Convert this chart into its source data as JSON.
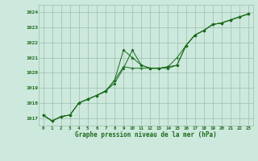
{
  "x": [
    0,
    1,
    2,
    3,
    4,
    5,
    6,
    7,
    8,
    9,
    10,
    11,
    12,
    13,
    14,
    15,
    16,
    17,
    18,
    19,
    20,
    21,
    22,
    23
  ],
  "series1": [
    1017.2,
    1016.8,
    1017.1,
    1017.2,
    1018.0,
    1018.25,
    1018.5,
    1018.8,
    1019.5,
    1021.5,
    1021.0,
    1020.5,
    1020.3,
    1020.3,
    1020.4,
    1020.5,
    1021.8,
    1022.5,
    1022.8,
    1023.2,
    1023.3,
    1023.5,
    1023.7,
    1023.9
  ],
  "series2": [
    1017.2,
    1016.8,
    1017.1,
    1017.2,
    1018.0,
    1018.25,
    1018.5,
    1018.8,
    1019.3,
    1020.3,
    1021.5,
    1020.5,
    1020.3,
    1020.3,
    1020.3,
    1020.5,
    1021.8,
    1022.5,
    1022.8,
    1023.2,
    1023.3,
    1023.5,
    1023.7,
    1023.9
  ],
  "series3": [
    1017.2,
    1016.8,
    1017.1,
    1017.2,
    1018.0,
    1018.25,
    1018.5,
    1018.75,
    1019.5,
    1020.4,
    1020.3,
    1020.3,
    1020.3,
    1020.3,
    1020.4,
    1021.0,
    1021.8,
    1022.5,
    1022.8,
    1023.2,
    1023.3,
    1023.5,
    1023.7,
    1023.9
  ],
  "line_color": "#1a6b1a",
  "bg_color": "#cde8dc",
  "grid_color": "#9bbfb2",
  "text_color": "#1a6b1a",
  "xlabel": "Graphe pression niveau de la mer (hPa)",
  "ylim_min": 1016.5,
  "ylim_max": 1024.5,
  "xlim_min": -0.5,
  "xlim_max": 23.5,
  "yticks": [
    1017,
    1018,
    1019,
    1020,
    1021,
    1022,
    1023,
    1024
  ],
  "xticks": [
    0,
    1,
    2,
    3,
    4,
    5,
    6,
    7,
    8,
    9,
    10,
    11,
    12,
    13,
    14,
    15,
    16,
    17,
    18,
    19,
    20,
    21,
    22,
    23
  ],
  "figwidth": 3.2,
  "figheight": 2.0,
  "dpi": 100
}
